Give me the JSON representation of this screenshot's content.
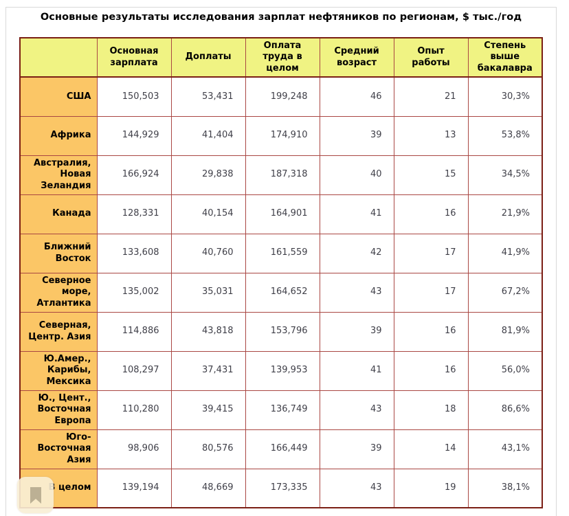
{
  "page": {
    "title": "Основные результаты исследования зарплат нефтяников по регионам, $ тыс./год"
  },
  "chart_data": {
    "type": "table",
    "title": "Основные результаты исследования зарплат нефтяников по регионам, $ тыс./год",
    "unit": "$ тыс./год",
    "corner_label": "",
    "columns": [
      "Основная зарплата",
      "Доплаты",
      "Оплата труда в целом",
      "Средний возраст",
      "Опыт работы",
      "Степень выше бакалавра"
    ],
    "rows": [
      {
        "region": "США",
        "values": [
          "150,503",
          "53,431",
          "199,248",
          "46",
          "21",
          "30,3%"
        ]
      },
      {
        "region": "Африка",
        "values": [
          "144,929",
          "41,404",
          "174,910",
          "39",
          "13",
          "53,8%"
        ]
      },
      {
        "region": "Австралия, Новая Зеландия",
        "values": [
          "166,924",
          "29,838",
          "187,318",
          "40",
          "15",
          "34,5%"
        ]
      },
      {
        "region": "Канада",
        "values": [
          "128,331",
          "40,154",
          "164,901",
          "41",
          "16",
          "21,9%"
        ]
      },
      {
        "region": "Ближний Восток",
        "values": [
          "133,608",
          "40,760",
          "161,559",
          "42",
          "17",
          "41,9%"
        ]
      },
      {
        "region": "Северное море, Атлантика",
        "values": [
          "135,002",
          "35,031",
          "164,652",
          "43",
          "17",
          "67,2%"
        ]
      },
      {
        "region": "Северная, Центр. Азия",
        "values": [
          "114,886",
          "43,818",
          "153,796",
          "39",
          "16",
          "81,9%"
        ]
      },
      {
        "region": "Ю.Амер., Карибы, Мексика",
        "values": [
          "108,297",
          "37,431",
          "139,953",
          "41",
          "16",
          "56,0%"
        ]
      },
      {
        "region": "Ю., Цент., Восточная Европа",
        "values": [
          "110,280",
          "39,415",
          "136,749",
          "43",
          "18",
          "86,6%"
        ]
      },
      {
        "region": "Юго-Восточная Азия",
        "values": [
          "98,906",
          "80,576",
          "166,449",
          "39",
          "14",
          "43,1%"
        ]
      },
      {
        "region": "В целом",
        "values": [
          "139,194",
          "48,669",
          "173,335",
          "43",
          "19",
          "38,1%"
        ]
      }
    ]
  },
  "icons": {
    "bookmark": "bookmark-icon"
  },
  "colors": {
    "header_bg": "#F0F383",
    "region_bg": "#FBC666",
    "border_outer": "#7A1E14",
    "border_inner": "#A94642",
    "title_text": "#000000",
    "data_text": "#3F3F48",
    "frame": "#D9D9D9",
    "bookmark_glyph": "#BCB094"
  }
}
